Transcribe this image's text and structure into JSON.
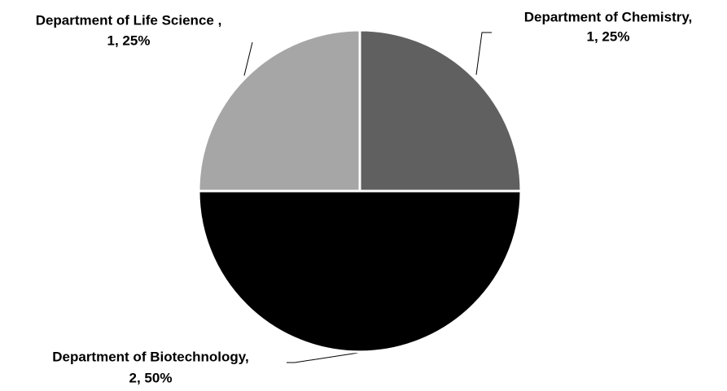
{
  "chart_data": {
    "type": "pie",
    "categories": [
      "Department of Chemistry,",
      "Department of Biotechnology,",
      "Department of Life Science ,"
    ],
    "values": [
      1,
      2,
      1
    ],
    "value_labels": [
      "1, 25%",
      "2, 50%",
      "1, 25%"
    ],
    "colors": [
      "#606060",
      "#000000",
      "#a6a6a6"
    ]
  }
}
